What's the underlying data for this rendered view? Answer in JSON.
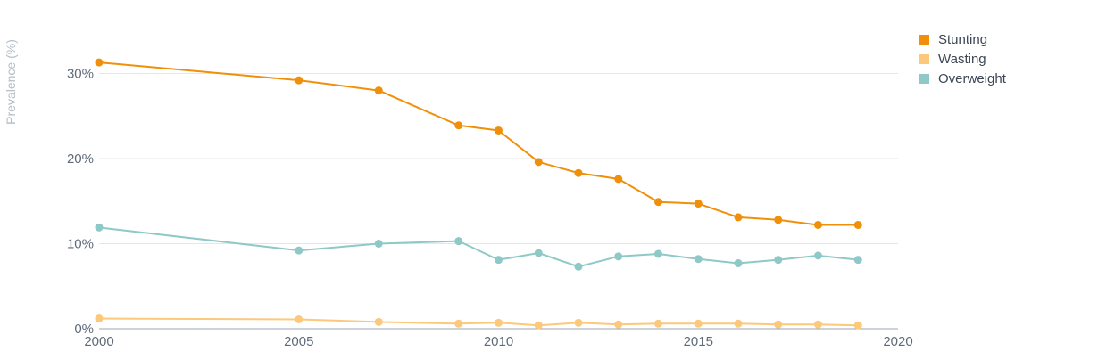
{
  "chart_data": {
    "type": "line",
    "ylabel": "Prevalence (%)",
    "xlim": [
      2000,
      2020
    ],
    "ylim": [
      0,
      35
    ],
    "x_ticks": [
      2000,
      2005,
      2010,
      2015,
      2020
    ],
    "y_ticks": [
      {
        "value": 0,
        "label": "0%"
      },
      {
        "value": 10,
        "label": "10%"
      },
      {
        "value": 20,
        "label": "20%"
      },
      {
        "value": 30,
        "label": "30%"
      }
    ],
    "grid": true,
    "legend_position": "top-right",
    "series": [
      {
        "name": "Stunting",
        "color": "#f0900a",
        "points": [
          {
            "x": 2000,
            "y": 31.3
          },
          {
            "x": 2005,
            "y": 29.2
          },
          {
            "x": 2007,
            "y": 28.0
          },
          {
            "x": 2009,
            "y": 23.9
          },
          {
            "x": 2010,
            "y": 23.3
          },
          {
            "x": 2011,
            "y": 19.6
          },
          {
            "x": 2012,
            "y": 18.3
          },
          {
            "x": 2013,
            "y": 17.6
          },
          {
            "x": 2014,
            "y": 14.9
          },
          {
            "x": 2015,
            "y": 14.7
          },
          {
            "x": 2016,
            "y": 13.1
          },
          {
            "x": 2017,
            "y": 12.8
          },
          {
            "x": 2018,
            "y": 12.2
          },
          {
            "x": 2019,
            "y": 12.2
          }
        ]
      },
      {
        "name": "Wasting",
        "color": "#fbc87c",
        "points": [
          {
            "x": 2000,
            "y": 1.2
          },
          {
            "x": 2005,
            "y": 1.1
          },
          {
            "x": 2007,
            "y": 0.8
          },
          {
            "x": 2009,
            "y": 0.6
          },
          {
            "x": 2010,
            "y": 0.7
          },
          {
            "x": 2011,
            "y": 0.4
          },
          {
            "x": 2012,
            "y": 0.7
          },
          {
            "x": 2013,
            "y": 0.5
          },
          {
            "x": 2014,
            "y": 0.6
          },
          {
            "x": 2015,
            "y": 0.6
          },
          {
            "x": 2016,
            "y": 0.6
          },
          {
            "x": 2017,
            "y": 0.5
          },
          {
            "x": 2018,
            "y": 0.5
          },
          {
            "x": 2019,
            "y": 0.4
          }
        ]
      },
      {
        "name": "Overweight",
        "color": "#8ec9c7",
        "points": [
          {
            "x": 2000,
            "y": 11.9
          },
          {
            "x": 2005,
            "y": 9.2
          },
          {
            "x": 2007,
            "y": 10.0
          },
          {
            "x": 2009,
            "y": 10.3
          },
          {
            "x": 2010,
            "y": 8.1
          },
          {
            "x": 2011,
            "y": 8.9
          },
          {
            "x": 2012,
            "y": 7.3
          },
          {
            "x": 2013,
            "y": 8.5
          },
          {
            "x": 2014,
            "y": 8.8
          },
          {
            "x": 2015,
            "y": 8.2
          },
          {
            "x": 2016,
            "y": 7.7
          },
          {
            "x": 2017,
            "y": 8.1
          },
          {
            "x": 2018,
            "y": 8.6
          },
          {
            "x": 2019,
            "y": 8.1
          }
        ]
      }
    ]
  }
}
